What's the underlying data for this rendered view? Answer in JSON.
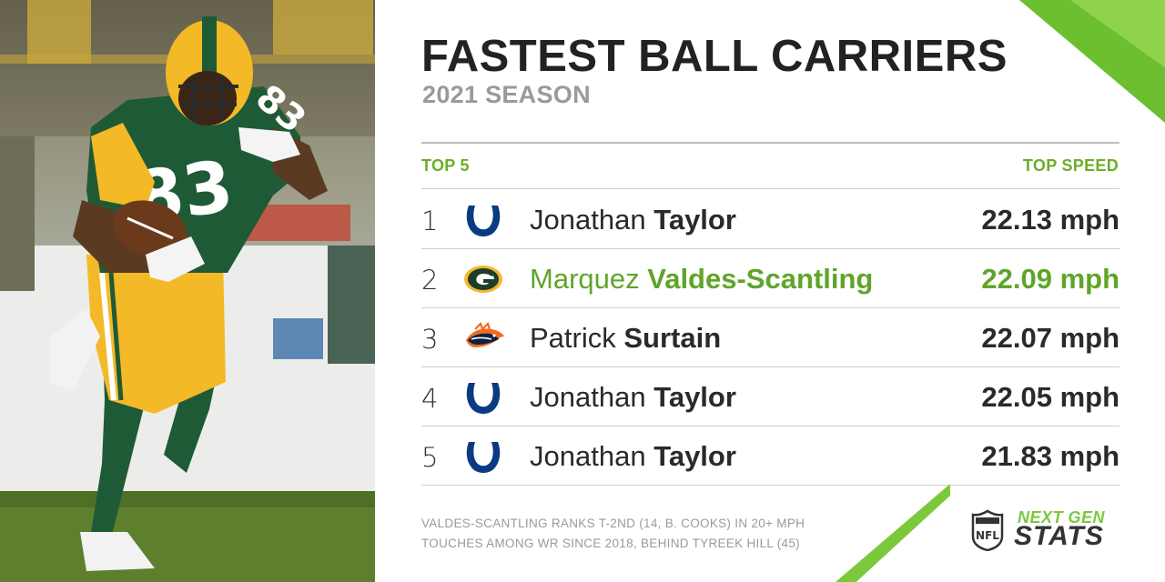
{
  "title": "FASTEST BALL CARRIERS",
  "subtitle": "2021 SEASON",
  "table": {
    "header_left": "TOP 5",
    "header_right": "TOP SPEED",
    "rows": [
      {
        "rank": "1",
        "team_logo": "colts-horseshoe-icon",
        "first": "Jonathan",
        "last": "Taylor",
        "speed": "22.13 mph",
        "highlight": false
      },
      {
        "rank": "2",
        "team_logo": "packers-g-icon",
        "first": "Marquez",
        "last": "Valdes-Scantling",
        "speed": "22.09 mph",
        "highlight": true
      },
      {
        "rank": "3",
        "team_logo": "broncos-horse-icon",
        "first": "Patrick",
        "last": "Surtain",
        "speed": "22.07 mph",
        "highlight": false
      },
      {
        "rank": "4",
        "team_logo": "colts-horseshoe-icon",
        "first": "Jonathan",
        "last": "Taylor",
        "speed": "22.05 mph",
        "highlight": false
      },
      {
        "rank": "5",
        "team_logo": "colts-horseshoe-icon",
        "first": "Jonathan",
        "last": "Taylor",
        "speed": "21.83 mph",
        "highlight": false
      }
    ]
  },
  "footnote": {
    "line1": "VALDES-SCANTLING RANKS T-2ND (14, B. COOKS) IN 20+ MPH",
    "line2": "TOUCHES AMONG WR SINCE 2018, BEHIND TYREEK HILL (45)"
  },
  "brand": {
    "next_label": "NEXT GEN",
    "stats_label": "STATS",
    "shield_text": "NFL"
  },
  "photo": {
    "jersey_number": "83",
    "description_icon": "football-player-photo"
  },
  "colors": {
    "accent_green": "#6aae2a",
    "highlight_green": "#5fa52a",
    "title": "#222222",
    "subtitle": "#9a9a9a",
    "colts_blue": "#0a3a82",
    "packers_green": "#1f3d2b",
    "packers_gold": "#f5b82e",
    "broncos_orange": "#f26b21",
    "broncos_navy": "#0a2343"
  }
}
